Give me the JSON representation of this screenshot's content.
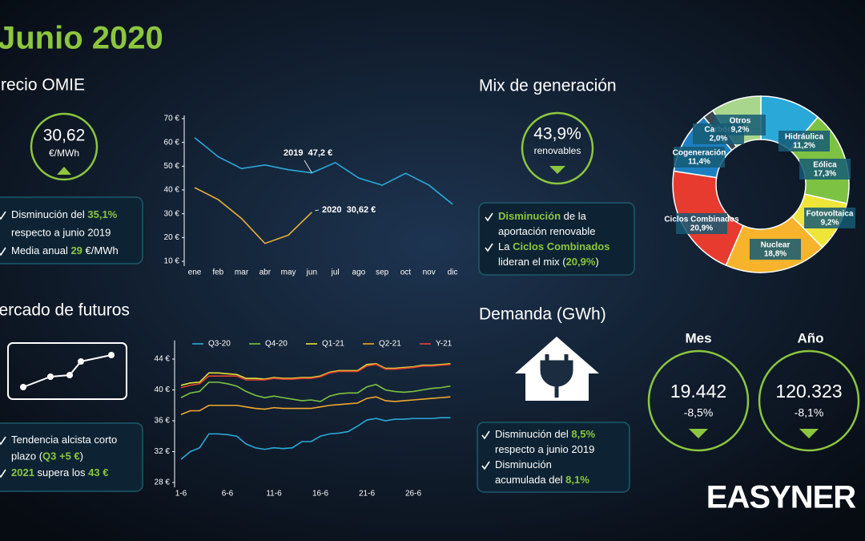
{
  "header": {
    "title": "Junio 2020"
  },
  "omie": {
    "heading": "Precio OMIE",
    "price": "30,62",
    "unit": "€/MWh",
    "notes": [
      [
        [
          "Disminución del ",
          {
            "hl": "35,1%"
          }
        ],
        [
          "respecto a junio 2019"
        ]
      ],
      [
        [
          "Media anual ",
          {
            "hl": "29"
          },
          " €/MWh"
        ]
      ]
    ]
  },
  "futures": {
    "heading": "Mercado de futuros",
    "notes": [
      [
        [
          "Tendencia alcista corto"
        ],
        [
          "plazo (",
          {
            "hl": "Q3 +5 €"
          },
          ")"
        ]
      ],
      [
        [
          {
            "hl": "2021"
          },
          " supera los ",
          {
            "hl": "43 €"
          }
        ]
      ]
    ]
  },
  "mix": {
    "heading": "Mix de generación",
    "share": "43,9%",
    "share_label": "renovables",
    "notes": [
      [
        [
          {
            "hl": "Disminución"
          },
          " de la"
        ],
        [
          "aportación renovable"
        ]
      ],
      [
        [
          "La ",
          {
            "hl": "Ciclos Combinados"
          }
        ],
        [
          "lideran el mix (",
          {
            "hl": "20,9%"
          },
          ")"
        ]
      ]
    ]
  },
  "demand": {
    "heading": "Demanda (GWh)",
    "notes": [
      [
        [
          "Disminución del ",
          {
            "hl": "8,5%"
          }
        ],
        [
          "respecto a junio 2019"
        ]
      ],
      [
        [
          "Disminución"
        ],
        [
          "acumulada del ",
          {
            "hl": "8,1%"
          }
        ]
      ]
    ],
    "month": {
      "label": "Mes",
      "value": "19.442",
      "change": "-8,5%"
    },
    "year": {
      "label": "Año",
      "value": "120.323",
      "change": "-8,1%"
    }
  },
  "logo": "EASYNER",
  "chart_data": [
    {
      "type": "line",
      "categories": [
        "ene",
        "feb",
        "mar",
        "abr",
        "may",
        "jun",
        "jul",
        "ago",
        "sep",
        "oct",
        "nov",
        "dic"
      ],
      "series": [
        {
          "name": "2019",
          "color": "#2aa9d9",
          "values": [
            62,
            54,
            49,
            50.5,
            48.5,
            47.2,
            51.5,
            45,
            42,
            47,
            42,
            34
          ]
        },
        {
          "name": "2020",
          "color": "#e8b23a",
          "values": [
            41,
            36,
            28,
            17.5,
            21,
            30.62,
            null,
            null,
            null,
            null,
            null,
            null
          ]
        }
      ],
      "annotations": [
        "2019  47,2 €",
        "2020  30,62 €"
      ],
      "ylim": [
        10,
        70
      ],
      "yticks": [
        {
          "value": 10,
          "label": "10 €"
        },
        {
          "value": 20,
          "label": "20 €"
        },
        {
          "value": 30,
          "label": "30 €"
        },
        {
          "value": 40,
          "label": "40 €"
        },
        {
          "value": 50,
          "label": "50 €"
        },
        {
          "value": 60,
          "label": "60 €"
        },
        {
          "value": 70,
          "label": "70 €"
        }
      ]
    },
    {
      "type": "line",
      "legend": "top",
      "categories": [
        "1-6",
        null,
        null,
        null,
        null,
        "6-6",
        null,
        null,
        null,
        null,
        "11-6",
        null,
        null,
        null,
        null,
        "16-6",
        null,
        null,
        null,
        null,
        "21-6",
        null,
        null,
        null,
        null,
        "26-6",
        null,
        null,
        null,
        null
      ],
      "series": [
        {
          "name": "Q3-20",
          "color": "#2aa9d9",
          "values": [
            31,
            32,
            32.5,
            34.3,
            34.3,
            34.2,
            34,
            33,
            32.5,
            32.3,
            32.5,
            32.4,
            32.5,
            33.3,
            33.3,
            34,
            34.3,
            34.4,
            34.6,
            35.3,
            36.1,
            36.3,
            36,
            36.2,
            36.2,
            36.3,
            36.3,
            36.3,
            36.4,
            36.4
          ]
        },
        {
          "name": "Q4-20",
          "color": "#7dc242",
          "values": [
            39,
            39.6,
            39.8,
            41,
            41,
            40.8,
            40.5,
            39.8,
            39.3,
            39,
            39.2,
            39,
            38.8,
            38.6,
            38.7,
            38.5,
            39.2,
            39.5,
            39.6,
            39.6,
            40.4,
            40.7,
            40,
            39.8,
            39.7,
            39.8,
            40,
            40.2,
            40.3,
            40.5
          ]
        },
        {
          "name": "Q1-21",
          "color": "#e9e23a",
          "values": [
            40.6,
            40.9,
            41,
            42.2,
            42.2,
            42.1,
            42,
            41.5,
            41.5,
            41.4,
            41.6,
            41.5,
            41.5,
            41.6,
            41.6,
            41.8,
            42.3,
            42.5,
            42.5,
            42.5,
            43.3,
            43.4,
            42.8,
            42.8,
            42.9,
            43,
            43.2,
            43.2,
            43.3,
            43.4
          ]
        },
        {
          "name": "Q2-21",
          "color": "#f0a830",
          "values": [
            36.8,
            37.3,
            37.3,
            38,
            38,
            38,
            38,
            37.8,
            37.6,
            37.5,
            37.7,
            37.6,
            37.6,
            37.6,
            37.6,
            37.8,
            38,
            38.1,
            38.2,
            38.3,
            38.9,
            39.1,
            38.6,
            38.5,
            38.6,
            38.7,
            38.8,
            38.9,
            39,
            39.1
          ]
        },
        {
          "name": "Y-21",
          "color": "#e4442f",
          "values": [
            40.3,
            40.6,
            40.8,
            41.8,
            41.8,
            41.8,
            41.8,
            41.3,
            41.3,
            41.3,
            41.5,
            41.4,
            41.4,
            41.5,
            41.5,
            41.7,
            42.2,
            42.4,
            42.4,
            42.4,
            43.1,
            43.3,
            42.7,
            42.7,
            42.8,
            42.9,
            43.1,
            43.1,
            43.2,
            43.3
          ]
        }
      ],
      "ylim": [
        28,
        46
      ],
      "yticks": [
        {
          "value": 28,
          "label": "28 €"
        },
        {
          "value": 32,
          "label": "32 €"
        },
        {
          "value": 36,
          "label": "36 €"
        },
        {
          "value": 40,
          "label": "40 €"
        },
        {
          "value": 44,
          "label": "44 €"
        }
      ]
    },
    {
      "type": "pie",
      "categories": [
        "Hidráulica",
        "Eólica",
        "Fotovoltaica",
        "Nuclear",
        "Ciclos Combinados",
        "Cogeneración",
        "Carbón",
        "Otros"
      ],
      "values": [
        11.2,
        17.3,
        9.2,
        18.8,
        20.9,
        11.4,
        2.0,
        9.2
      ],
      "value_labels": [
        "11,2%",
        "17,3%",
        "9,2%",
        "18,8%",
        "20,9%",
        "11,4%",
        "2,0%",
        "9,2%"
      ],
      "colors": [
        "#2aa9d9",
        "#7dc242",
        "#efe53a",
        "#f7b32b",
        "#e63b2e",
        "#1e7fc0",
        "#3c4650",
        "#a8d68c"
      ]
    }
  ]
}
